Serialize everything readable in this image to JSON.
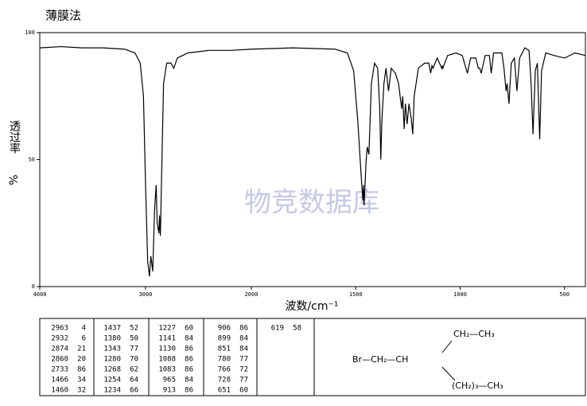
{
  "chart_data": {
    "type": "line",
    "title": "薄膜法",
    "watermark": "物竞数据库",
    "xlabel": "波数/cm⁻¹",
    "ylabel": "透过率",
    "ylabel_unit": "%",
    "xlim": [
      4000,
      400
    ],
    "x_scale_break": 2000,
    "xticks": [
      4000,
      3000,
      2000,
      1500,
      1000,
      500
    ],
    "ylim": [
      0,
      100
    ],
    "yticks": [
      0,
      50,
      100
    ],
    "series": [
      {
        "name": "spectrum",
        "color": "#000000",
        "x": [
          4000,
          3800,
          3600,
          3400,
          3200,
          3100,
          3050,
          3020,
          3000,
          2980,
          2963,
          2950,
          2932,
          2915,
          2900,
          2890,
          2874,
          2868,
          2860,
          2850,
          2830,
          2800,
          2760,
          2733,
          2700,
          2650,
          2600,
          2400,
          2200,
          2000,
          1800,
          1600,
          1540,
          1510,
          1490,
          1475,
          1466,
          1463,
          1460,
          1450,
          1445,
          1437,
          1425,
          1410,
          1395,
          1385,
          1380,
          1375,
          1365,
          1355,
          1343,
          1330,
          1310,
          1295,
          1280,
          1275,
          1268,
          1262,
          1254,
          1245,
          1234,
          1227,
          1220,
          1200,
          1170,
          1150,
          1141,
          1135,
          1130,
          1110,
          1088,
          1085,
          1083,
          1060,
          1020,
          990,
          965,
          950,
          925,
          913,
          906,
          899,
          880,
          860,
          851,
          840,
          800,
          790,
          780,
          775,
          766,
          755,
          740,
          728,
          715,
          690,
          670,
          660,
          651,
          640,
          630,
          619,
          610,
          590,
          550,
          500,
          450,
          400
        ],
        "values": [
          94,
          94.5,
          94,
          94,
          93.5,
          92,
          88,
          75,
          40,
          10,
          4,
          12,
          6,
          30,
          40,
          25,
          21,
          28,
          20,
          40,
          80,
          88,
          88,
          86,
          90,
          91,
          92,
          93,
          93,
          93.5,
          94,
          93.5,
          92,
          85,
          65,
          45,
          34,
          40,
          32,
          50,
          55,
          52,
          80,
          88,
          86,
          70,
          50,
          65,
          80,
          86,
          77,
          86,
          84,
          80,
          70,
          75,
          62,
          72,
          64,
          72,
          66,
          60,
          75,
          86,
          88,
          88,
          84,
          87,
          86,
          90,
          86,
          87,
          86,
          91,
          92,
          91,
          84,
          90,
          90,
          86,
          86,
          84,
          91,
          91,
          84,
          92,
          92,
          86,
          77,
          80,
          72,
          88,
          90,
          77,
          90,
          94,
          93,
          80,
          60,
          85,
          88,
          58,
          85,
          92,
          91,
          90,
          92,
          91
        ]
      }
    ]
  },
  "peak_table": {
    "columns": [
      [
        [
          2963,
          4
        ],
        [
          2932,
          6
        ],
        [
          2874,
          21
        ],
        [
          2860,
          20
        ],
        [
          2733,
          86
        ],
        [
          1466,
          34
        ],
        [
          1460,
          32
        ]
      ],
      [
        [
          1437,
          52
        ],
        [
          1380,
          50
        ],
        [
          1343,
          77
        ],
        [
          1280,
          70
        ],
        [
          1268,
          62
        ],
        [
          1254,
          64
        ],
        [
          1234,
          66
        ]
      ],
      [
        [
          1227,
          60
        ],
        [
          1141,
          84
        ],
        [
          1130,
          86
        ],
        [
          1088,
          86
        ],
        [
          1083,
          86
        ],
        [
          965,
          84
        ],
        [
          913,
          86
        ]
      ],
      [
        [
          906,
          86
        ],
        [
          899,
          84
        ],
        [
          851,
          84
        ],
        [
          780,
          77
        ],
        [
          766,
          72
        ],
        [
          728,
          77
        ],
        [
          651,
          60
        ]
      ],
      [
        [
          619,
          58
        ]
      ]
    ]
  },
  "structure": {
    "top": "CH₂—CH₃",
    "main": "Br—CH₂—CH",
    "bottom": "(CH₂)₃—CH₃"
  }
}
